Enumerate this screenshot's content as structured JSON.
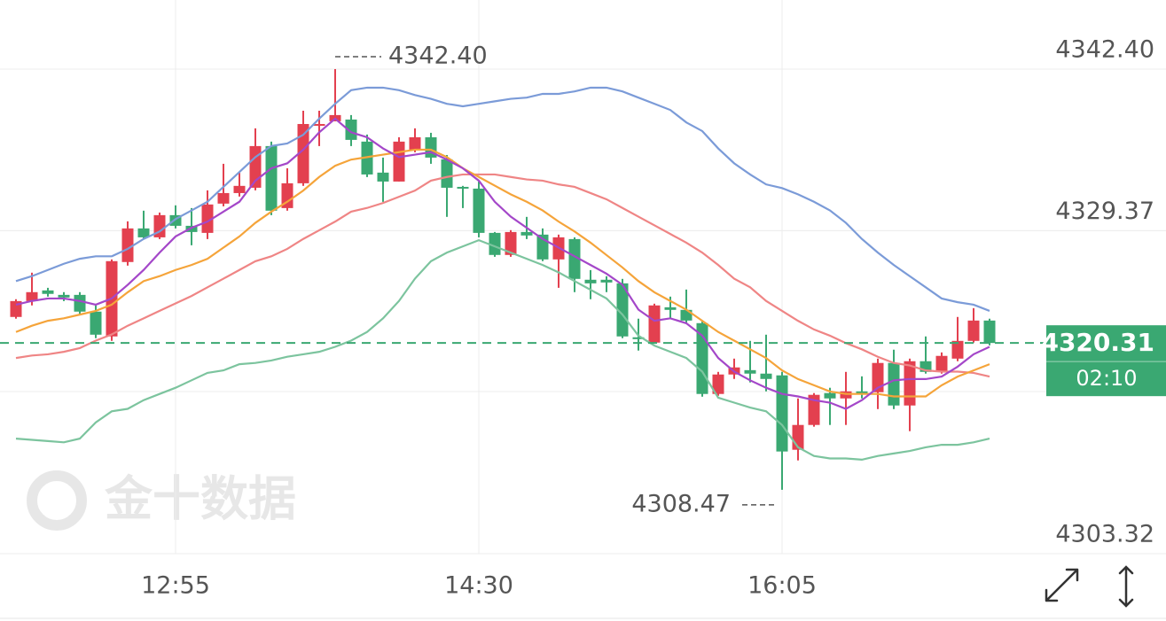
{
  "chart_data": {
    "type": "candlestick",
    "categories": [
      null,
      null,
      null,
      null,
      null,
      null,
      null,
      null,
      null,
      null,
      "12:55",
      null,
      null,
      null,
      null,
      null,
      null,
      null,
      null,
      null,
      null,
      null,
      null,
      null,
      null,
      null,
      null,
      null,
      null,
      "14:30",
      null,
      null,
      null,
      null,
      null,
      null,
      null,
      null,
      null,
      null,
      null,
      null,
      null,
      null,
      null,
      null,
      null,
      null,
      "16:05",
      null,
      null,
      null,
      null,
      null,
      null,
      null,
      null,
      null,
      null,
      null,
      null,
      null
    ],
    "open": [
      4322.41,
      4323.69,
      4324.55,
      4324.19,
      4324.19,
      4322.84,
      4320.84,
      4326.84,
      4329.55,
      4328.83,
      4330.62,
      4329.76,
      4329.19,
      4331.55,
      4332.4,
      4332.83,
      4336.19,
      4331.19,
      4333.19,
      4337.83,
      4338.19,
      4338.33,
      4336.55,
      4334.05,
      4333.33,
      4335.83,
      4336.9,
      4335.12,
      4332.9,
      4332.76,
      4329.19,
      4327.41,
      4329.26,
      4329.05,
      4327.05,
      4328.69,
      4325.41,
      4325.41,
      4325.12,
      4320.77,
      4320.34,
      4323.19,
      4322.98,
      4321.91,
      4316.2,
      4317.77,
      4318.12,
      4317.84,
      4317.7,
      4311.7,
      4313.7,
      4316.27,
      4315.84,
      4316.41,
      4316.34,
      4318.7,
      4315.27,
      4318.84,
      4317.98,
      4319.05,
      4320.48,
      4322.12
    ],
    "high": [
      4323.84,
      4325.98,
      4324.76,
      4324.41,
      4324.41,
      4323.34,
      4327.05,
      4330.12,
      4330.98,
      4330.83,
      4331.41,
      4331.19,
      4332.62,
      4334.76,
      4334.05,
      4337.62,
      4336.55,
      4334.4,
      4339.04,
      4339.04,
      4342.4,
      4338.69,
      4337.12,
      4335.26,
      4336.9,
      4337.62,
      4337.26,
      4335.47,
      4332.98,
      4333.33,
      4329.26,
      4329.41,
      4330.48,
      4329.55,
      4329.05,
      4328.83,
      4326.19,
      4325.69,
      4325.48,
      4322.27,
      4323.48,
      4324.05,
      4324.62,
      4322.05,
      4317.98,
      4319.05,
      4320.48,
      4320.98,
      4317.98,
      4315.84,
      4316.27,
      4316.7,
      4317.98,
      4317.62,
      4319.05,
      4319.77,
      4319.05,
      4320.84,
      4319.55,
      4322.41,
      4323.12,
      4322.27
    ],
    "low": [
      4322.27,
      4323.34,
      4324.05,
      4323.69,
      4322.62,
      4320.7,
      4320.48,
      4326.55,
      4328.69,
      4328.69,
      4329.55,
      4328.19,
      4328.69,
      4331.33,
      4332.12,
      4332.62,
      4330.62,
      4330.98,
      4332.98,
      4336.19,
      4338.19,
      4336.19,
      4333.69,
      4331.69,
      4333.33,
      4335.69,
      4334.76,
      4330.48,
      4331.19,
      4328.83,
      4327.26,
      4327.26,
      4328.69,
      4326.91,
      4324.76,
      4324.41,
      4323.84,
      4324.41,
      4320.7,
      4319.7,
      4320.27,
      4322.27,
      4321.91,
      4315.98,
      4316.05,
      4317.41,
      4317.13,
      4316.41,
      4308.47,
      4310.84,
      4313.56,
      4313.7,
      4313.7,
      4315.84,
      4314.98,
      4314.98,
      4313.2,
      4317.84,
      4317.84,
      4318.84,
      4320.34,
      4320.12
    ],
    "close": [
      4323.69,
      4324.41,
      4324.27,
      4323.98,
      4322.84,
      4320.98,
      4326.91,
      4329.55,
      4328.83,
      4330.62,
      4329.76,
      4329.26,
      4331.48,
      4332.4,
      4332.98,
      4336.19,
      4330.98,
      4333.19,
      4337.97,
      4337.97,
      4338.69,
      4336.69,
      4333.9,
      4333.33,
      4336.55,
      4336.9,
      4335.26,
      4332.83,
      4332.76,
      4329.19,
      4327.41,
      4329.26,
      4328.98,
      4327.05,
      4328.83,
      4325.48,
      4325.12,
      4325.19,
      4320.84,
      4320.62,
      4323.34,
      4322.98,
      4322.12,
      4316.2,
      4317.77,
      4318.34,
      4317.84,
      4317.41,
      4311.56,
      4313.7,
      4316.13,
      4315.84,
      4316.41,
      4316.2,
      4318.7,
      4315.27,
      4318.84,
      4317.98,
      4319.27,
      4320.48,
      4322.12,
      4320.31
    ],
    "up_color": "#e3404f",
    "down_color": "#3aa872",
    "overlays": [
      {
        "color": "#7b9bd8",
        "values": [
          4325.3,
          4325.7,
          4326.2,
          4326.7,
          4327.1,
          4327.3,
          4327.3,
          4327.9,
          4328.7,
          4329.3,
          4330.3,
          4331.0,
          4331.7,
          4332.9,
          4334.1,
          4335.3,
          4336.2,
          4336.4,
          4337.1,
          4338.4,
          4339.6,
          4340.7,
          4340.9,
          4340.9,
          4340.7,
          4340.3,
          4340.0,
          4339.6,
          4339.4,
          4339.6,
          4339.8,
          4340.0,
          4340.1,
          4340.4,
          4340.4,
          4340.6,
          4340.9,
          4340.9,
          4340.6,
          4340.1,
          4339.6,
          4339.1,
          4338.1,
          4337.4,
          4336.0,
          4334.8,
          4333.9,
          4333.1,
          4332.8,
          4332.3,
          4331.7,
          4331.0,
          4330.0,
          4328.7,
          4327.6,
          4326.6,
          4325.7,
          4324.8,
          4323.9,
          4323.6,
          4323.4,
          4322.9
        ]
      },
      {
        "color": "#7cc49e",
        "values": [
          4312.6,
          4312.5,
          4312.4,
          4312.3,
          4312.6,
          4313.9,
          4314.8,
          4315.0,
          4315.7,
          4316.2,
          4316.7,
          4317.3,
          4317.9,
          4318.1,
          4318.6,
          4318.7,
          4318.9,
          4319.2,
          4319.4,
          4319.6,
          4320.0,
          4320.5,
          4321.2,
          4322.3,
          4323.7,
          4325.5,
          4326.9,
          4327.6,
          4328.1,
          4328.6,
          4328.1,
          4327.6,
          4327.1,
          4326.6,
          4326.0,
          4325.3,
          4324.6,
          4323.9,
          4322.6,
          4320.9,
          4320.1,
          4319.6,
          4319.1,
          4318.0,
          4315.9,
          4315.5,
          4315.1,
          4314.8,
          4313.7,
          4311.9,
          4311.2,
          4311.0,
          4311.0,
          4310.9,
          4311.2,
          4311.4,
          4311.6,
          4311.9,
          4312.1,
          4312.1,
          4312.3,
          4312.6
        ]
      },
      {
        "color": "#ef8585",
        "values": [
          4319.1,
          4319.3,
          4319.4,
          4319.6,
          4319.9,
          4320.5,
          4321.0,
          4321.7,
          4322.3,
          4322.9,
          4323.5,
          4324.1,
          4324.8,
          4325.5,
          4326.2,
          4326.9,
          4327.3,
          4327.9,
          4328.7,
          4329.4,
          4330.1,
          4330.9,
          4331.2,
          4331.6,
          4332.1,
          4332.6,
          4333.4,
          4333.7,
          4333.9,
          4333.9,
          4333.9,
          4333.7,
          4333.5,
          4333.4,
          4333.1,
          4332.9,
          4332.4,
          4331.9,
          4331.2,
          4330.5,
          4329.8,
          4329.1,
          4328.4,
          4327.6,
          4326.6,
          4325.5,
          4324.8,
          4323.7,
          4322.9,
          4322.1,
          4321.4,
          4320.9,
          4320.3,
          4319.8,
          4319.2,
          4318.7,
          4318.5,
          4318.1,
          4318.0,
          4318.0,
          4317.9,
          4317.6
        ]
      },
      {
        "color": "#f5a43a",
        "values": [
          4321.2,
          4321.7,
          4322.1,
          4322.3,
          4322.6,
          4322.9,
          4323.4,
          4324.4,
          4325.3,
          4325.7,
          4326.2,
          4326.6,
          4327.1,
          4328.0,
          4328.9,
          4330.0,
          4330.9,
          4331.7,
          4332.6,
          4333.7,
          4334.6,
          4335.1,
          4335.3,
          4335.5,
          4335.7,
          4335.9,
          4335.9,
          4335.3,
          4334.4,
          4333.7,
          4333.0,
          4332.3,
          4331.7,
          4331.0,
          4330.1,
          4329.3,
          4328.4,
          4327.4,
          4326.4,
          4325.3,
          4324.4,
          4323.7,
          4323.0,
          4322.1,
          4321.2,
          4320.5,
          4319.8,
          4319.1,
          4318.1,
          4317.4,
          4316.9,
          4316.4,
          4316.2,
          4316.2,
          4316.2,
          4316.0,
          4316.0,
          4316.0,
          4316.9,
          4317.6,
          4318.1,
          4318.6
        ]
      },
      {
        "color": "#a447c9",
        "values": [
          4323.4,
          4323.7,
          4323.9,
          4323.9,
          4323.7,
          4323.4,
          4323.9,
          4325.0,
          4326.2,
          4327.6,
          4328.9,
          4329.6,
          4330.1,
          4330.9,
          4331.7,
          4333.4,
          4334.4,
          4334.8,
          4335.9,
          4337.3,
          4338.4,
          4337.3,
          4336.9,
          4336.0,
          4335.3,
          4335.5,
          4335.7,
          4335.1,
          4334.4,
          4333.4,
          4331.7,
          4330.5,
          4329.6,
          4328.7,
          4328.0,
          4327.3,
          4326.6,
          4325.9,
          4325.0,
          4323.0,
          4322.1,
          4322.3,
          4321.9,
          4320.9,
          4319.1,
          4318.0,
          4317.3,
          4316.7,
          4316.2,
          4316.0,
          4315.7,
          4315.5,
          4315.0,
          4315.7,
          4316.7,
          4317.3,
          4317.4,
          4317.4,
          4317.6,
          4318.4,
          4319.4,
          4320.0
        ]
      }
    ],
    "ylim": [
      4303.32,
      4347.97
    ],
    "yticks": [
      {
        "value": 4342.4,
        "label": "4342.40"
      },
      4329.37,
      4303.32
    ],
    "grid": true,
    "countdown": "02:10",
    "watermark": "金十数据"
  }
}
